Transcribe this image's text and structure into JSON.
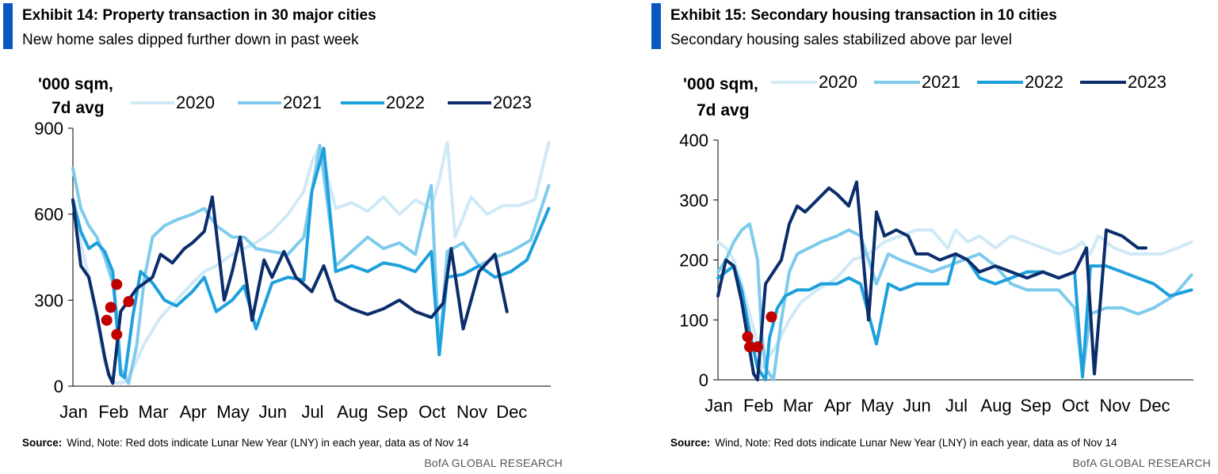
{
  "colors": {
    "accent": "#0a57c2",
    "c2020": "#cfe9f7",
    "c2021": "#7ecbec",
    "c2022": "#1ea0dc",
    "c2023": "#0b2d6b",
    "lny_dot": "#c00000"
  },
  "exhibit14": {
    "title": "Exhibit 14: Property transaction in 30 major cities",
    "subtitle": "New home sales dipped further down in past week",
    "source_label": "Source:",
    "source_text": "Wind, Note: Red dots indicate Lunar New Year (LNY) in each year, data as of Nov 14",
    "brand": "BofA GLOBAL RESEARCH"
  },
  "exhibit15": {
    "title": "Exhibit 15:  Secondary housing transaction in 10 cities",
    "subtitle": "Secondary housing sales stabilized above par level",
    "source_label": "Source:",
    "source_text": "Wind, Note: Red dots indicate Lunar New Year (LNY) in each year, data as of Nov 14",
    "brand": "BofA GLOBAL RESEARCH"
  },
  "chart_data": [
    {
      "type": "line",
      "ylabel": [
        "'000 sqm,",
        "7d avg"
      ],
      "ylim": [
        0,
        900
      ],
      "yticks": [
        0,
        300,
        600,
        900
      ],
      "x_tick_labels": [
        "Jan",
        "Feb",
        "Mar",
        "Apr",
        "May",
        "Jun",
        "Jul",
        "Aug",
        "Sep",
        "Oct",
        "Nov",
        "Dec"
      ],
      "xlim": [
        0,
        12
      ],
      "legend": [
        "2020",
        "2021",
        "2022",
        "2023"
      ],
      "series": [
        {
          "name": "2020",
          "x": [
            0,
            0.2,
            0.4,
            0.6,
            0.8,
            1.0,
            1.1,
            1.3,
            1.5,
            1.8,
            2.2,
            2.6,
            3.0,
            3.3,
            3.6,
            4.0,
            4.3,
            4.6,
            5.0,
            5.4,
            5.8,
            6.0,
            6.2,
            6.6,
            7.0,
            7.4,
            7.8,
            8.2,
            8.6,
            9.0,
            9.2,
            9.4,
            9.6,
            10.0,
            10.4,
            10.8,
            11.2,
            11.6,
            11.95
          ],
          "values": [
            640,
            500,
            380,
            230,
            80,
            20,
            10,
            15,
            60,
            150,
            240,
            300,
            360,
            400,
            420,
            460,
            480,
            500,
            540,
            600,
            680,
            780,
            840,
            620,
            640,
            610,
            660,
            600,
            650,
            620,
            720,
            850,
            520,
            660,
            600,
            630,
            630,
            650,
            850
          ]
        },
        {
          "name": "2021",
          "x": [
            0,
            0.2,
            0.4,
            0.6,
            0.8,
            1.0,
            1.1,
            1.2,
            1.4,
            1.6,
            1.8,
            2.0,
            2.3,
            2.6,
            3.0,
            3.3,
            3.6,
            4.0,
            4.3,
            4.6,
            5.0,
            5.4,
            5.8,
            6.2,
            6.6,
            7.0,
            7.4,
            7.8,
            8.2,
            8.6,
            9.0,
            9.2,
            9.4,
            9.8,
            10.2,
            10.6,
            11.0,
            11.5,
            11.95
          ],
          "values": [
            760,
            620,
            560,
            520,
            450,
            360,
            250,
            60,
            10,
            140,
            380,
            520,
            560,
            580,
            600,
            620,
            560,
            520,
            520,
            480,
            470,
            460,
            520,
            840,
            420,
            470,
            520,
            480,
            500,
            460,
            700,
            110,
            470,
            500,
            420,
            450,
            470,
            510,
            700
          ]
        },
        {
          "name": "2022",
          "x": [
            0,
            0.2,
            0.4,
            0.6,
            0.8,
            1.0,
            1.2,
            1.3,
            1.5,
            1.7,
            2.0,
            2.3,
            2.6,
            3.0,
            3.3,
            3.6,
            4.0,
            4.3,
            4.6,
            5.0,
            5.4,
            5.8,
            6.0,
            6.3,
            6.6,
            7.0,
            7.4,
            7.8,
            8.2,
            8.6,
            9.0,
            9.2,
            9.4,
            9.8,
            10.2,
            10.6,
            11.0,
            11.4,
            11.95
          ],
          "values": [
            650,
            540,
            480,
            500,
            470,
            400,
            40,
            30,
            240,
            400,
            360,
            300,
            280,
            330,
            380,
            260,
            300,
            350,
            200,
            360,
            380,
            370,
            680,
            830,
            400,
            420,
            400,
            430,
            420,
            400,
            470,
            110,
            380,
            390,
            420,
            380,
            400,
            440,
            620
          ]
        },
        {
          "name": "2023",
          "x": [
            0,
            0.2,
            0.4,
            0.6,
            0.8,
            0.9,
            1.0,
            1.2,
            1.4,
            1.6,
            1.8,
            2.0,
            2.2,
            2.5,
            2.8,
            3.0,
            3.3,
            3.5,
            3.8,
            4.0,
            4.2,
            4.5,
            4.8,
            5.0,
            5.3,
            5.6,
            6.0,
            6.3,
            6.6,
            7.0,
            7.4,
            7.8,
            8.2,
            8.6,
            9.0,
            9.3,
            9.5,
            9.8,
            10.2,
            10.6,
            10.9
          ],
          "values": [
            650,
            420,
            380,
            250,
            100,
            40,
            10,
            260,
            300,
            340,
            360,
            380,
            460,
            430,
            480,
            500,
            540,
            660,
            300,
            400,
            520,
            230,
            440,
            380,
            470,
            380,
            330,
            420,
            300,
            270,
            250,
            270,
            300,
            260,
            240,
            290,
            480,
            200,
            400,
            460,
            260
          ]
        }
      ],
      "lny_points": [
        {
          "x": 0.85,
          "value": 230
        },
        {
          "x": 0.95,
          "value": 275
        },
        {
          "x": 1.1,
          "value": 180
        },
        {
          "x": 1.1,
          "value": 355
        },
        {
          "x": 1.4,
          "value": 295
        }
      ]
    },
    {
      "type": "line",
      "ylabel": [
        "'000 sqm,",
        "7d avg"
      ],
      "ylim": [
        0,
        400
      ],
      "yticks": [
        0,
        100,
        200,
        300,
        400
      ],
      "x_tick_labels": [
        "Jan",
        "Feb",
        "Mar",
        "Apr",
        "May",
        "Jun",
        "Jul",
        "Aug",
        "Sep",
        "Oct",
        "Nov",
        "Dec"
      ],
      "xlim": [
        0,
        12
      ],
      "legend": [
        "2020",
        "2021",
        "2022",
        "2023"
      ],
      "series": [
        {
          "name": "2020",
          "x": [
            0,
            0.2,
            0.4,
            0.6,
            0.8,
            1.0,
            1.1,
            1.3,
            1.5,
            1.8,
            2.1,
            2.5,
            3.0,
            3.4,
            3.8,
            4.2,
            4.6,
            5.0,
            5.4,
            5.8,
            6.0,
            6.3,
            6.6,
            7.0,
            7.4,
            7.8,
            8.2,
            8.6,
            9.0,
            9.2,
            9.4,
            9.6,
            10.0,
            10.4,
            10.8,
            11.2,
            11.6,
            11.95
          ],
          "values": [
            230,
            220,
            200,
            160,
            110,
            60,
            20,
            40,
            60,
            100,
            130,
            150,
            170,
            200,
            210,
            230,
            240,
            250,
            250,
            220,
            250,
            230,
            240,
            220,
            240,
            230,
            220,
            210,
            220,
            230,
            210,
            240,
            220,
            210,
            210,
            210,
            220,
            230
          ]
        },
        {
          "name": "2021",
          "x": [
            0,
            0.2,
            0.4,
            0.6,
            0.8,
            1.0,
            1.1,
            1.2,
            1.4,
            1.6,
            1.8,
            2.0,
            2.3,
            2.6,
            3.0,
            3.3,
            3.6,
            4.0,
            4.3,
            4.6,
            5.0,
            5.4,
            5.8,
            6.2,
            6.6,
            7.0,
            7.4,
            7.8,
            8.2,
            8.6,
            9.0,
            9.2,
            9.4,
            9.8,
            10.2,
            10.6,
            11.0,
            11.5,
            11.95
          ],
          "values": [
            180,
            200,
            230,
            250,
            260,
            200,
            80,
            20,
            0,
            100,
            180,
            210,
            220,
            230,
            240,
            250,
            240,
            160,
            210,
            200,
            190,
            180,
            190,
            200,
            210,
            190,
            160,
            150,
            150,
            150,
            120,
            10,
            110,
            120,
            120,
            110,
            120,
            140,
            175
          ]
        },
        {
          "name": "2022",
          "x": [
            0,
            0.2,
            0.4,
            0.6,
            0.8,
            1.0,
            1.2,
            1.3,
            1.5,
            1.7,
            2.0,
            2.3,
            2.6,
            3.0,
            3.3,
            3.6,
            4.0,
            4.3,
            4.6,
            5.0,
            5.4,
            5.8,
            6.0,
            6.3,
            6.6,
            7.0,
            7.4,
            7.8,
            8.2,
            8.6,
            9.0,
            9.2,
            9.4,
            9.8,
            10.2,
            10.6,
            11.0,
            11.4,
            11.95
          ],
          "values": [
            170,
            180,
            190,
            150,
            80,
            20,
            0,
            70,
            120,
            140,
            150,
            150,
            160,
            160,
            170,
            160,
            60,
            160,
            150,
            160,
            160,
            160,
            210,
            200,
            170,
            160,
            170,
            180,
            180,
            170,
            180,
            5,
            190,
            190,
            180,
            170,
            160,
            140,
            150
          ]
        },
        {
          "name": "2023",
          "x": [
            0,
            0.2,
            0.4,
            0.6,
            0.8,
            0.9,
            1.0,
            1.2,
            1.4,
            1.6,
            1.8,
            2.0,
            2.2,
            2.5,
            2.8,
            3.0,
            3.3,
            3.5,
            3.8,
            4.0,
            4.2,
            4.5,
            4.8,
            5.0,
            5.3,
            5.6,
            6.0,
            6.3,
            6.6,
            7.0,
            7.4,
            7.8,
            8.2,
            8.6,
            9.0,
            9.3,
            9.5,
            9.8,
            10.2,
            10.4,
            10.6,
            10.8
          ],
          "values": [
            140,
            200,
            190,
            130,
            50,
            10,
            0,
            160,
            180,
            200,
            260,
            290,
            280,
            300,
            320,
            310,
            290,
            330,
            100,
            280,
            240,
            250,
            240,
            210,
            210,
            200,
            210,
            200,
            180,
            190,
            180,
            170,
            180,
            170,
            180,
            220,
            10,
            250,
            240,
            230,
            220,
            220
          ]
        }
      ],
      "lny_points": [
        {
          "x": 0.75,
          "value": 72
        },
        {
          "x": 0.8,
          "value": 55
        },
        {
          "x": 1.0,
          "value": 55
        },
        {
          "x": 1.35,
          "value": 105
        }
      ]
    }
  ]
}
